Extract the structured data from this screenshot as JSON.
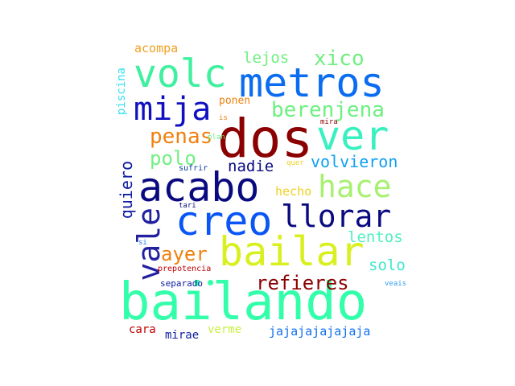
{
  "words": [
    {
      "text": "bailando",
      "color": "#33ffaa"
    },
    {
      "text": "dos",
      "color": "#8b0000"
    },
    {
      "text": "metros",
      "color": "#0a6cf0"
    },
    {
      "text": "acabo",
      "color": "#0a0a80"
    },
    {
      "text": "creo",
      "color": "#0a55f5"
    },
    {
      "text": "bailar",
      "color": "#d8f020"
    },
    {
      "text": "ver",
      "color": "#38f0c0"
    },
    {
      "text": "volc",
      "color": "#40f0a0"
    },
    {
      "text": "mija",
      "color": "#1010c0"
    },
    {
      "text": "hace",
      "color": "#a8f070"
    },
    {
      "text": "llorar",
      "color": "#0a0a80"
    },
    {
      "text": "vale",
      "color": "#2020a0"
    },
    {
      "text": "penas",
      "color": "#f08010"
    },
    {
      "text": "berenjena",
      "color": "#6cf080"
    },
    {
      "text": "polo",
      "color": "#70f080"
    },
    {
      "text": "refieres",
      "color": "#8b0000"
    },
    {
      "text": "volvieron",
      "color": "#10a0f0"
    },
    {
      "text": "ayer",
      "color": "#f08010"
    },
    {
      "text": "xico",
      "color": "#70f080"
    },
    {
      "text": "lejos",
      "color": "#70f080"
    },
    {
      "text": "nadie",
      "color": "#0a0a80"
    },
    {
      "text": "quiero",
      "color": "#1020a0"
    },
    {
      "text": "lentos",
      "color": "#50f0c0"
    },
    {
      "text": "solo",
      "color": "#40e8d0"
    },
    {
      "text": "jajajajajajaja",
      "color": "#1070f0"
    },
    {
      "text": "hecho",
      "color": "#f0d020"
    },
    {
      "text": "acompa",
      "color": "#f0a020"
    },
    {
      "text": "piscina",
      "color": "#30e0f0"
    },
    {
      "text": "ponen",
      "color": "#f08010"
    },
    {
      "text": "cara",
      "color": "#c00000"
    },
    {
      "text": "mirae",
      "color": "#1020a0"
    },
    {
      "text": "verme",
      "color": "#c8f040"
    },
    {
      "text": "sufrir",
      "color": "#0a40a0"
    },
    {
      "text": "separado",
      "color": "#1020a0"
    },
    {
      "text": "prepotencia",
      "color": "#c00000"
    },
    {
      "text": "tari",
      "color": "#0a0a80"
    },
    {
      "text": "is",
      "color": "#f08010"
    },
    {
      "text": "plan",
      "color": "#70f080"
    },
    {
      "text": "mira",
      "color": "#8b0000"
    },
    {
      "text": "quer",
      "color": "#f0d020"
    },
    {
      "text": "si",
      "color": "#2080f0"
    },
    {
      "text": "veais",
      "color": "#30a0f0"
    }
  ],
  "dot_color": "#33ffaa"
}
